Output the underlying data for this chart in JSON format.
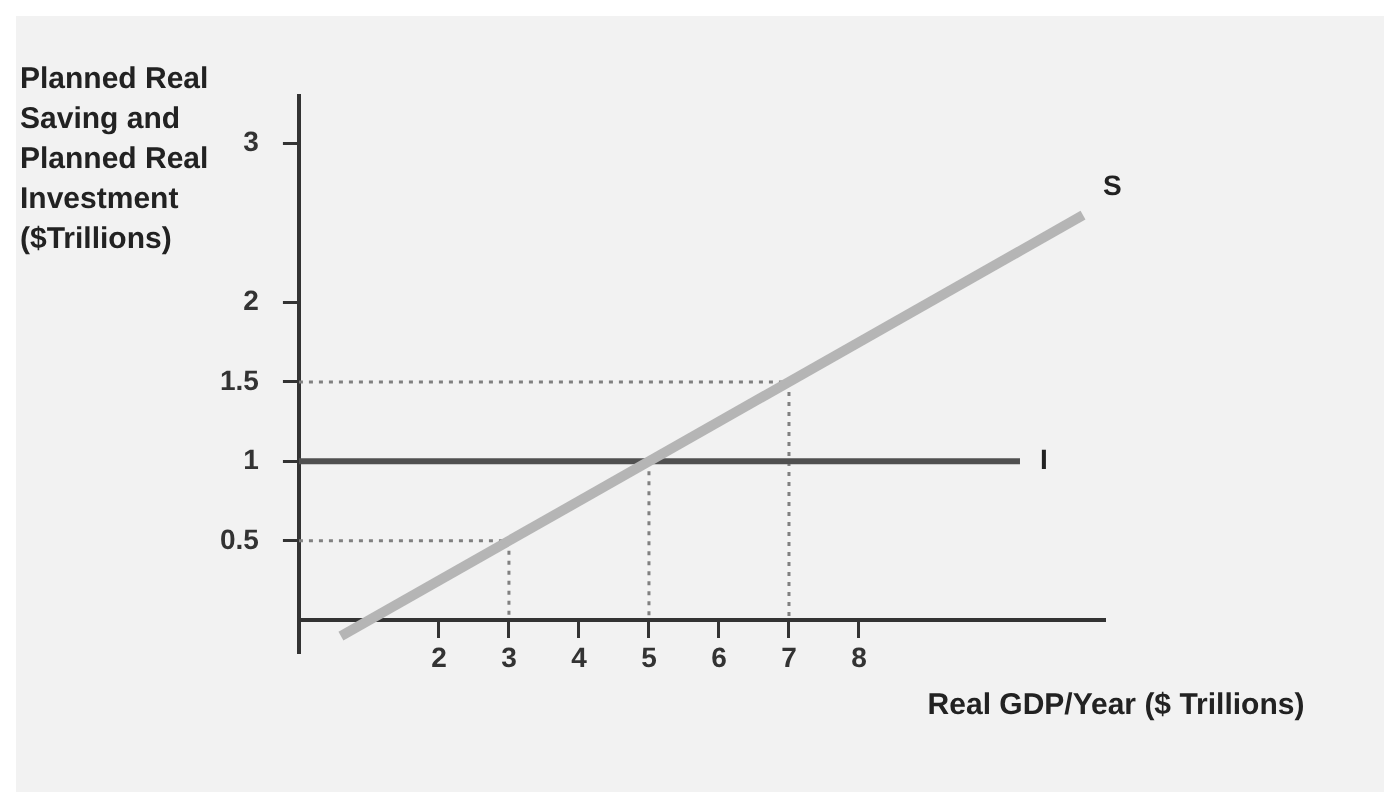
{
  "chart_data": {
    "type": "line",
    "xlabel": "Real GDP/Year ($ Trillions)",
    "ylabel": "Planned Real Saving and Planned Real Investment ($Trillions)",
    "xlim": [
      0,
      11.5
    ],
    "xticks": [
      2,
      3,
      4,
      5,
      6,
      7,
      8
    ],
    "ylim": [
      -0.2,
      3.3
    ],
    "yticks": [
      0.5,
      1,
      1.5,
      2,
      3
    ],
    "series": [
      {
        "name": "S",
        "color": "#b5b5b5",
        "x": [
          0.6,
          11.2
        ],
        "values": [
          -0.1,
          2.55
        ]
      },
      {
        "name": "I",
        "color": "#505050",
        "x": [
          0,
          10.3
        ],
        "values": [
          1,
          1
        ]
      },
      {
        "color": "#808080",
        "line_style": "dotted",
        "x": [
          0,
          3,
          3
        ],
        "values": [
          0.5,
          0.5,
          0
        ]
      },
      {
        "color": "#808080",
        "line_style": "dotted",
        "x": [
          5,
          5
        ],
        "values": [
          1,
          0
        ]
      },
      {
        "color": "#808080",
        "line_style": "dotted",
        "x": [
          0,
          7,
          7
        ],
        "values": [
          1.5,
          1.5,
          0
        ]
      }
    ],
    "grid": false,
    "legend": false,
    "marker": "none",
    "line_style": "solid"
  }
}
